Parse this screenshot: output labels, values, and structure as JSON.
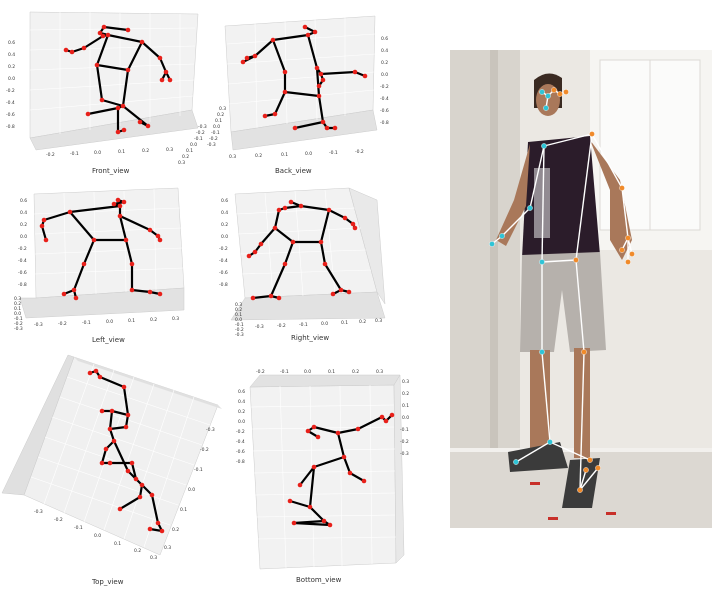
{
  "colors": {
    "bone": "#000000",
    "joint": "#e8201a",
    "pane_light": "#f2f2f2",
    "pane_mid": "#e4e4e4",
    "grid": "#ffffff",
    "overlay_line": "#ffffff",
    "overlay_left_joint": "#2fc4d6",
    "overlay_right_joint": "#f08a2a",
    "wall": "#eceae6",
    "floor": "#d9d5cf"
  },
  "views": [
    {
      "id": "front",
      "label": "Front_view",
      "axis1_ticks": [
        "0.6",
        "0.4",
        "0.2",
        "0.0",
        "-0.2",
        "-0.4",
        "-0.6",
        "-0.8"
      ],
      "axis2_ticks": [
        "-0.2",
        "-0.1",
        "0.0",
        "0.1",
        "0.2",
        "0.3"
      ],
      "axis3_ticks": [
        "-0.3",
        "-0.2",
        "-0.1",
        "0.0",
        "0.1",
        "0.2",
        "0.3"
      ]
    },
    {
      "id": "back",
      "label": "Back_view",
      "axis1_ticks": [
        "0.6",
        "0.4",
        "0.2",
        "0.0",
        "-0.2",
        "-0.4",
        "-0.6",
        "-0.8"
      ],
      "axis2_ticks": [
        "0.3",
        "0.2",
        "0.1",
        "0.0",
        "-0.1",
        "-0.2"
      ],
      "axis3_ticks": [
        "-0.3",
        "-0.2",
        "-0.1",
        "0.0",
        "0.1",
        "0.2",
        "0.3"
      ]
    },
    {
      "id": "left",
      "label": "Left_view",
      "axis1_ticks": [
        "0.6",
        "0.4",
        "0.2",
        "0.0",
        "-0.2",
        "-0.4",
        "-0.6",
        "-0.8"
      ],
      "axis2_ticks": [
        "-0.3",
        "-0.2",
        "-0.1",
        "0.0",
        "0.1",
        "0.2",
        "0.3"
      ],
      "axis3_ticks": [
        "0.3",
        "0.2",
        "0.1",
        "0.0",
        "-0.1",
        "-0.2",
        "-0.3"
      ]
    },
    {
      "id": "right",
      "label": "Right_view",
      "axis1_ticks": [
        "0.6",
        "0.4",
        "0.2",
        "0.0",
        "-0.2",
        "-0.4",
        "-0.6",
        "-0.8"
      ],
      "axis2_ticks": [
        "0.3",
        "0.2",
        "0.1",
        "0.0",
        "-0.1",
        "-0.2",
        "-0.3"
      ],
      "axis3_ticks": [
        "-0.3",
        "-0.2",
        "-0.1",
        "0.0",
        "0.1",
        "0.2",
        "0.3"
      ]
    },
    {
      "id": "top",
      "label": "Top_view",
      "axis1_ticks": [
        "-0.3",
        "-0.2",
        "-0.1",
        "0.0",
        "0.1",
        "0.2",
        "0.3"
      ],
      "axis2_ticks": [
        "-0.3",
        "-0.2",
        "-0.1",
        "0.0",
        "0.1",
        "0.2",
        "0.3"
      ],
      "axis3_ticks": []
    },
    {
      "id": "bottom",
      "label": "Bottom_view",
      "axis1_ticks": [
        "-0.2",
        "-0.1",
        "0.0",
        "0.1",
        "0.2",
        "0.3"
      ],
      "axis2_ticks": [
        "0.6",
        "0.4",
        "0.2",
        "0.0",
        "-0.2",
        "-0.4",
        "-0.6",
        "-0.8"
      ],
      "axis3_ticks": [
        "-0.3",
        "-0.2",
        "-0.1",
        "0.0",
        "0.1",
        "0.2",
        "0.3"
      ]
    }
  ]
}
